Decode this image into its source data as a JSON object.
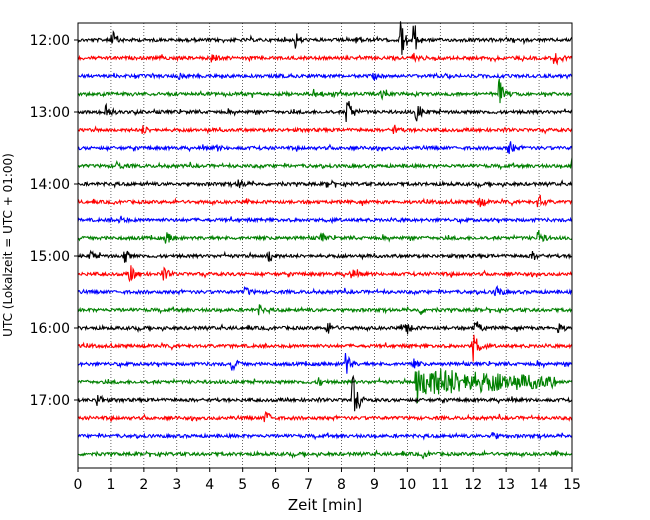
{
  "chart_data": {
    "type": "line",
    "title": "",
    "xlabel": "Zeit  [min]",
    "ylabel": "UTC (Lokalzeit = UTC + 01:00)",
    "xlim": [
      0,
      15
    ],
    "x_ticks": [
      "0",
      "1",
      "2",
      "3",
      "4",
      "5",
      "6",
      "7",
      "8",
      "9",
      "10",
      "11",
      "12",
      "13",
      "14",
      "15"
    ],
    "y_tick_labels": [
      "12:00",
      "13:00",
      "14:00",
      "15:00",
      "16:00",
      "17:00"
    ],
    "trace_colors": [
      "#000000",
      "#ff0000",
      "#0000ff",
      "#008000"
    ],
    "grid": "vertical dotted lines at each minute",
    "traces": [
      {
        "start": "12:00",
        "events": [
          {
            "t": 1.05,
            "amp": 0.7
          },
          {
            "t": 6.6,
            "amp": 0.6
          },
          {
            "t": 9.8,
            "amp": 1.4
          },
          {
            "t": 10.2,
            "amp": 1.2
          },
          {
            "t": 8.5,
            "amp": 0.3
          }
        ]
      },
      {
        "start": "12:15",
        "events": [
          {
            "t": 4.1,
            "amp": 0.4
          },
          {
            "t": 14.5,
            "amp": 0.6
          },
          {
            "t": 10.2,
            "amp": 0.3
          }
        ]
      },
      {
        "start": "12:30",
        "events": [
          {
            "t": 3.1,
            "amp": 0.2
          },
          {
            "t": 9.0,
            "amp": 0.2
          }
        ]
      },
      {
        "start": "12:45",
        "events": [
          {
            "t": 12.8,
            "amp": 1.1
          },
          {
            "t": 7.2,
            "amp": 0.5
          },
          {
            "t": 9.2,
            "amp": 0.3
          }
        ]
      },
      {
        "start": "13:00",
        "events": [
          {
            "t": 0.85,
            "amp": 0.7
          },
          {
            "t": 8.2,
            "amp": 1.2
          },
          {
            "t": 10.3,
            "amp": 0.7
          }
        ]
      },
      {
        "start": "13:15",
        "events": [
          {
            "t": 2.0,
            "amp": 0.3
          },
          {
            "t": 9.6,
            "amp": 0.3
          }
        ]
      },
      {
        "start": "13:30",
        "events": [
          {
            "t": 13.1,
            "amp": 0.5
          },
          {
            "t": 4.2,
            "amp": 0.2
          }
        ]
      },
      {
        "start": "13:45",
        "events": [
          {
            "t": 15.0,
            "amp": 0.5
          },
          {
            "t": 1.2,
            "amp": 0.3
          }
        ]
      },
      {
        "start": "14:00",
        "events": [
          {
            "t": 4.9,
            "amp": 0.4
          },
          {
            "t": 7.6,
            "amp": 0.3
          }
        ]
      },
      {
        "start": "14:15",
        "events": [
          {
            "t": 12.2,
            "amp": 0.4
          },
          {
            "t": 14.0,
            "amp": 0.6
          }
        ]
      },
      {
        "start": "14:30",
        "events": [
          {
            "t": 1.3,
            "amp": 0.2
          }
        ]
      },
      {
        "start": "14:45",
        "events": [
          {
            "t": 2.7,
            "amp": 0.4
          },
          {
            "t": 14.0,
            "amp": 0.6
          },
          {
            "t": 7.4,
            "amp": 0.3
          }
        ]
      },
      {
        "start": "15:00",
        "events": [
          {
            "t": 1.4,
            "amp": 0.6
          },
          {
            "t": 5.8,
            "amp": 0.5
          },
          {
            "t": 0.4,
            "amp": 0.3
          },
          {
            "t": 13.8,
            "amp": 0.3
          }
        ]
      },
      {
        "start": "15:15",
        "events": [
          {
            "t": 1.6,
            "amp": 0.8
          },
          {
            "t": 2.6,
            "amp": 0.5
          },
          {
            "t": 8.3,
            "amp": 0.4
          }
        ]
      },
      {
        "start": "15:30",
        "events": [
          {
            "t": 12.7,
            "amp": 0.5
          },
          {
            "t": 5.1,
            "amp": 0.3
          }
        ]
      },
      {
        "start": "15:45",
        "events": [
          {
            "t": 5.5,
            "amp": 0.3
          },
          {
            "t": 10.4,
            "amp": 0.3
          }
        ]
      },
      {
        "start": "16:00",
        "events": [
          {
            "t": 7.6,
            "amp": 0.5
          },
          {
            "t": 10.0,
            "amp": 0.5
          },
          {
            "t": 12.1,
            "amp": 0.6
          },
          {
            "t": 14.6,
            "amp": 0.4
          }
        ]
      },
      {
        "start": "16:15",
        "events": [
          {
            "t": 12.0,
            "amp": 1.3
          }
        ]
      },
      {
        "start": "16:30",
        "events": [
          {
            "t": 8.1,
            "amp": 1.1
          },
          {
            "t": 4.7,
            "amp": 0.5
          },
          {
            "t": 10.2,
            "amp": 0.3
          }
        ]
      },
      {
        "start": "16:45",
        "events": [
          {
            "t": 10.3,
            "amp": 1.9,
            "coda": 4.2
          },
          {
            "t": 7.3,
            "amp": 0.3
          }
        ]
      },
      {
        "start": "17:00",
        "events": [
          {
            "t": 8.35,
            "amp": 1.8
          },
          {
            "t": 0.6,
            "amp": 0.5
          }
        ]
      },
      {
        "start": "17:15",
        "events": [
          {
            "t": 5.7,
            "amp": 0.6
          }
        ]
      },
      {
        "start": "17:30",
        "events": [
          {
            "t": 12.6,
            "amp": 0.3
          }
        ]
      },
      {
        "start": "17:45",
        "events": [
          {
            "t": 10.5,
            "amp": 0.2
          }
        ]
      }
    ]
  }
}
